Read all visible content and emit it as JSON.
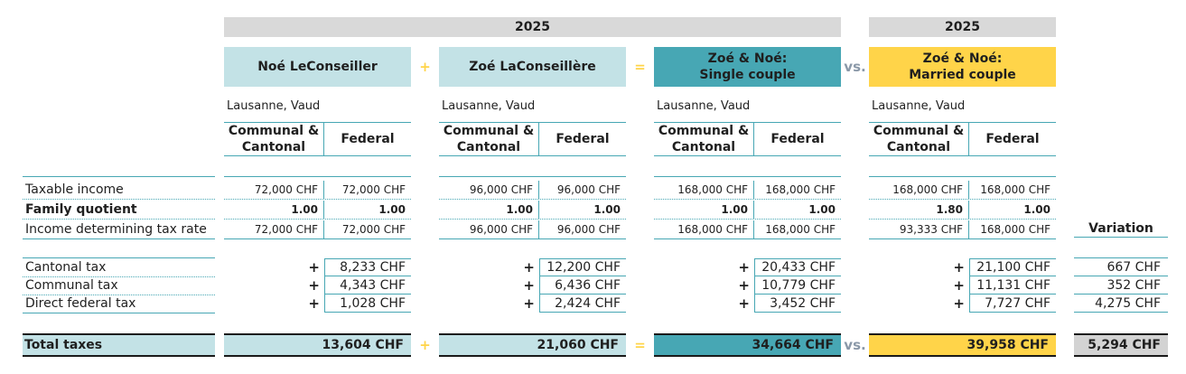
{
  "header": {
    "year_left": "2025",
    "year_right": "2025"
  },
  "people": {
    "noe": {
      "name": "Noé LeConseiller",
      "location": "Lausanne, Vaud"
    },
    "zoe": {
      "name": "Zoé LaConseillère",
      "location": "Lausanne, Vaud"
    },
    "single": {
      "name_line1": "Zoé & Noé:",
      "name_line2": "Single couple",
      "location": "Lausanne, Vaud"
    },
    "married": {
      "name_line1": "Zoé & Noé:",
      "name_line2": "Married couple",
      "location": "Lausanne, Vaud"
    }
  },
  "operators": {
    "plus": "+",
    "equals": "=",
    "vs": "vs."
  },
  "columns": {
    "cc_line1": "Communal &",
    "cc_line2": "Cantonal",
    "federal": "Federal"
  },
  "rows": {
    "taxable_income": "Taxable income",
    "family_quotient": "Family quotient",
    "rate_income": "Income determining tax rate",
    "cantonal_tax": "Cantonal tax",
    "communal_tax": "Communal tax",
    "federal_tax": "Direct federal tax",
    "total_taxes": "Total taxes",
    "variation": "Variation"
  },
  "values": {
    "noe": {
      "taxable_cc": "72,000 CHF",
      "taxable_fed": "72,000 CHF",
      "quot_cc": "1.00",
      "quot_fed": "1.00",
      "rate_cc": "72,000 CHF",
      "rate_fed": "72,000 CHF",
      "cantonal": "8,233 CHF",
      "communal": "4,343 CHF",
      "federal": "1,028 CHF",
      "total": "13,604 CHF"
    },
    "zoe": {
      "taxable_cc": "96,000 CHF",
      "taxable_fed": "96,000 CHF",
      "quot_cc": "1.00",
      "quot_fed": "1.00",
      "rate_cc": "96,000 CHF",
      "rate_fed": "96,000 CHF",
      "cantonal": "12,200 CHF",
      "communal": "6,436 CHF",
      "federal": "2,424 CHF",
      "total": "21,060 CHF"
    },
    "single": {
      "taxable_cc": "168,000 CHF",
      "taxable_fed": "168,000 CHF",
      "quot_cc": "1.00",
      "quot_fed": "1.00",
      "rate_cc": "168,000 CHF",
      "rate_fed": "168,000 CHF",
      "cantonal": "20,433 CHF",
      "communal": "10,779 CHF",
      "federal": "3,452 CHF",
      "total": "34,664 CHF"
    },
    "married": {
      "taxable_cc": "168,000 CHF",
      "taxable_fed": "168,000 CHF",
      "quot_cc": "1.80",
      "quot_fed": "1.00",
      "rate_cc": "93,333 CHF",
      "rate_fed": "168,000 CHF",
      "cantonal": "21,100 CHF",
      "communal": "11,131 CHF",
      "federal": "7,727 CHF",
      "total": "39,958 CHF"
    },
    "variation": {
      "cantonal": "667 CHF",
      "communal": "352 CHF",
      "federal": "4,275 CHF",
      "total": "5,294 CHF"
    }
  },
  "colors": {
    "light_blue": "#c3e2e6",
    "teal": "#47a7b4",
    "yellow": "#ffd449",
    "grey": "#d3d3d3"
  }
}
